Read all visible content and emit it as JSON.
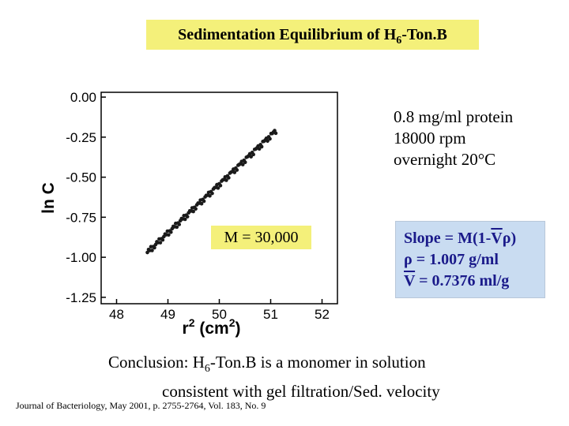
{
  "title": {
    "prefix": "Sedimentation Equilibrium of H",
    "sub": "6",
    "suffix": "-Ton.B"
  },
  "chart_data": {
    "type": "scatter",
    "xlabel": "r",
    "xlabel_sup": "2",
    "xlabel_unit": " (cm",
    "xlabel_unit_sup": "2",
    "xlabel_close": ")",
    "ylabel": "ln C",
    "xlim": [
      47.7,
      52.3
    ],
    "ylim": [
      -1.29,
      0.03
    ],
    "y_ticks": [
      "0.00",
      "-0.25",
      "-0.50",
      "-0.75",
      "-1.00",
      "-1.25"
    ],
    "y_tick_values": [
      0.0,
      -0.25,
      -0.5,
      -0.75,
      -1.0,
      -1.25
    ],
    "x_ticks": [
      "48",
      "49",
      "50",
      "51",
      "52"
    ],
    "x_tick_values": [
      48,
      49,
      50,
      51,
      52
    ],
    "fit_start": [
      48.6,
      -0.97
    ],
    "fit_end": [
      51.1,
      -0.21
    ],
    "n_points": 110,
    "marker_color": "#1a1a1a",
    "box_color": "#000000"
  },
  "conditions": [
    "0.8 mg/ml protein",
    "18000 rpm",
    "overnight   20°C"
  ],
  "mw_label": "M = 30,000",
  "slope_box": {
    "line1": "Slope = M(1-",
    "line1_v": "V",
    "line1_rho": "ρ",
    "line1_end": ")",
    "line2": "ρ = 1.007 g/ml",
    "line3_v": "V",
    "line3_rest": " = 0.7376 ml/g"
  },
  "conclusion": {
    "line1_prefix": "Conclusion:  H",
    "line1_sub": "6",
    "line1_suffix": "-Ton.B is a monomer in solution",
    "line2": "consistent with gel filtration/Sed. velocity"
  },
  "citation": "Journal of Bacteriology, May 2001, p. 2755-2764, Vol. 183, No. 9",
  "colors": {
    "highlight_yellow": "#f4f07a",
    "slope_box_bg": "#c9dcf1",
    "slope_text": "#1a1a8a"
  }
}
